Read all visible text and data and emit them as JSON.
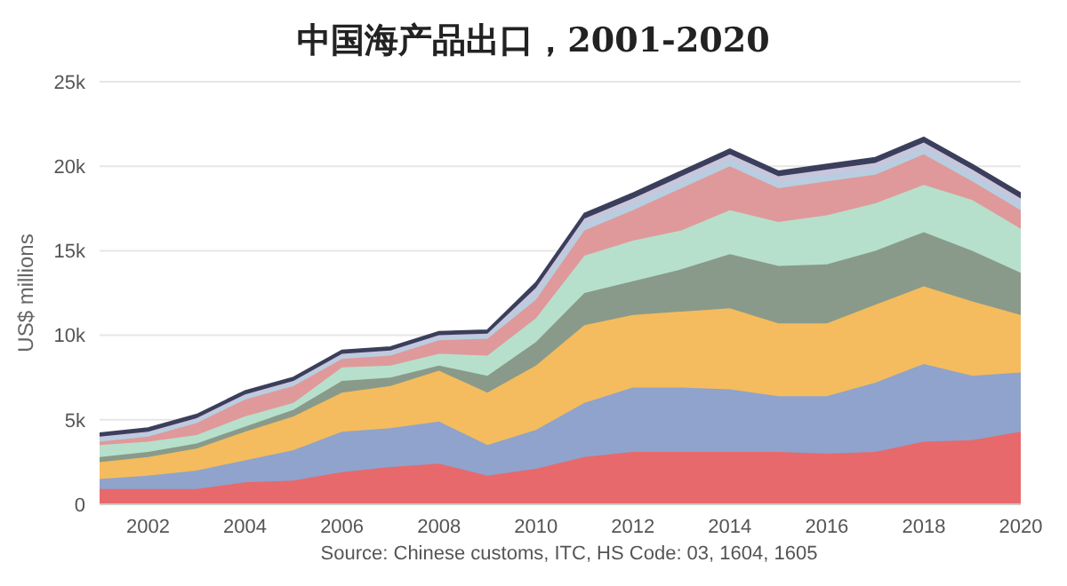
{
  "chart_data": {
    "type": "area",
    "title": "中国海产品出口，2001-2020",
    "ylabel": "US$ millions",
    "annotations": [
      "Source: Chinese customs, ITC, HS Code: 03, 1604, 1605"
    ],
    "stacked": true,
    "grid": "y",
    "x": [
      2001,
      2002,
      2003,
      2004,
      2005,
      2006,
      2007,
      2008,
      2009,
      2010,
      2011,
      2012,
      2013,
      2014,
      2015,
      2016,
      2017,
      2018,
      2019,
      2020
    ],
    "xlim": [
      2001,
      2020
    ],
    "xticks": [
      2002,
      2004,
      2006,
      2008,
      2010,
      2012,
      2014,
      2016,
      2018,
      2020
    ],
    "ylim": [
      0,
      25000
    ],
    "yticks": [
      0,
      {
        "value": 5000,
        "label": "5k"
      },
      {
        "value": 10000,
        "label": "10k"
      },
      {
        "value": 15000,
        "label": "15k"
      },
      {
        "value": 20000,
        "label": "20k"
      },
      {
        "value": 25000,
        "label": "25k"
      }
    ],
    "series": [
      {
        "color": "#e8696b",
        "values": [
          900,
          900,
          900,
          1300,
          1400,
          1900,
          2200,
          2400,
          1700,
          2100,
          2800,
          3100,
          3100,
          3100,
          3100,
          3000,
          3100,
          3700,
          3800,
          4300
        ]
      },
      {
        "color": "#8fa3cc",
        "values": [
          600,
          800,
          1100,
          1300,
          1800,
          2400,
          2300,
          2500,
          1800,
          2300,
          3200,
          3800,
          3800,
          3700,
          3300,
          3400,
          4100,
          4600,
          3800,
          3500
        ]
      },
      {
        "color": "#f4bc5e",
        "values": [
          1000,
          1100,
          1300,
          1700,
          2000,
          2300,
          2500,
          3000,
          3100,
          3800,
          4600,
          4300,
          4500,
          4800,
          4300,
          4300,
          4600,
          4600,
          4400,
          3400
        ]
      },
      {
        "color": "#8a9a8a",
        "values": [
          300,
          300,
          300,
          300,
          400,
          700,
          500,
          300,
          1000,
          1400,
          1900,
          2000,
          2500,
          3200,
          3400,
          3500,
          3200,
          3200,
          3000,
          2500
        ]
      },
      {
        "color": "#b6e0cc",
        "values": [
          700,
          600,
          500,
          600,
          400,
          800,
          700,
          700,
          1200,
          1400,
          2200,
          2400,
          2300,
          2600,
          2600,
          2900,
          2800,
          2800,
          3000,
          2600
        ]
      },
      {
        "color": "#e0999a",
        "values": [
          200,
          300,
          700,
          1000,
          1000,
          500,
          600,
          800,
          1000,
          1100,
          1500,
          1800,
          2500,
          2600,
          2000,
          2000,
          1700,
          1800,
          1100,
          1100
        ]
      },
      {
        "color": "#b9cde0",
        "values": [
          200,
          200,
          200,
          200,
          200,
          200,
          200,
          200,
          200,
          400,
          400,
          400,
          400,
          400,
          400,
          400,
          400,
          400,
          400,
          400
        ]
      },
      {
        "color": "#c9c6dc",
        "values": [
          100,
          100,
          100,
          100,
          100,
          100,
          100,
          100,
          100,
          300,
          300,
          300,
          300,
          300,
          300,
          300,
          300,
          300,
          300,
          300
        ]
      },
      {
        "color": "#3b3f5c",
        "values": [
          200,
          200,
          200,
          200,
          200,
          200,
          200,
          200,
          200,
          300,
          300,
          300,
          300,
          300,
          300,
          300,
          300,
          300,
          300,
          300
        ]
      }
    ]
  }
}
